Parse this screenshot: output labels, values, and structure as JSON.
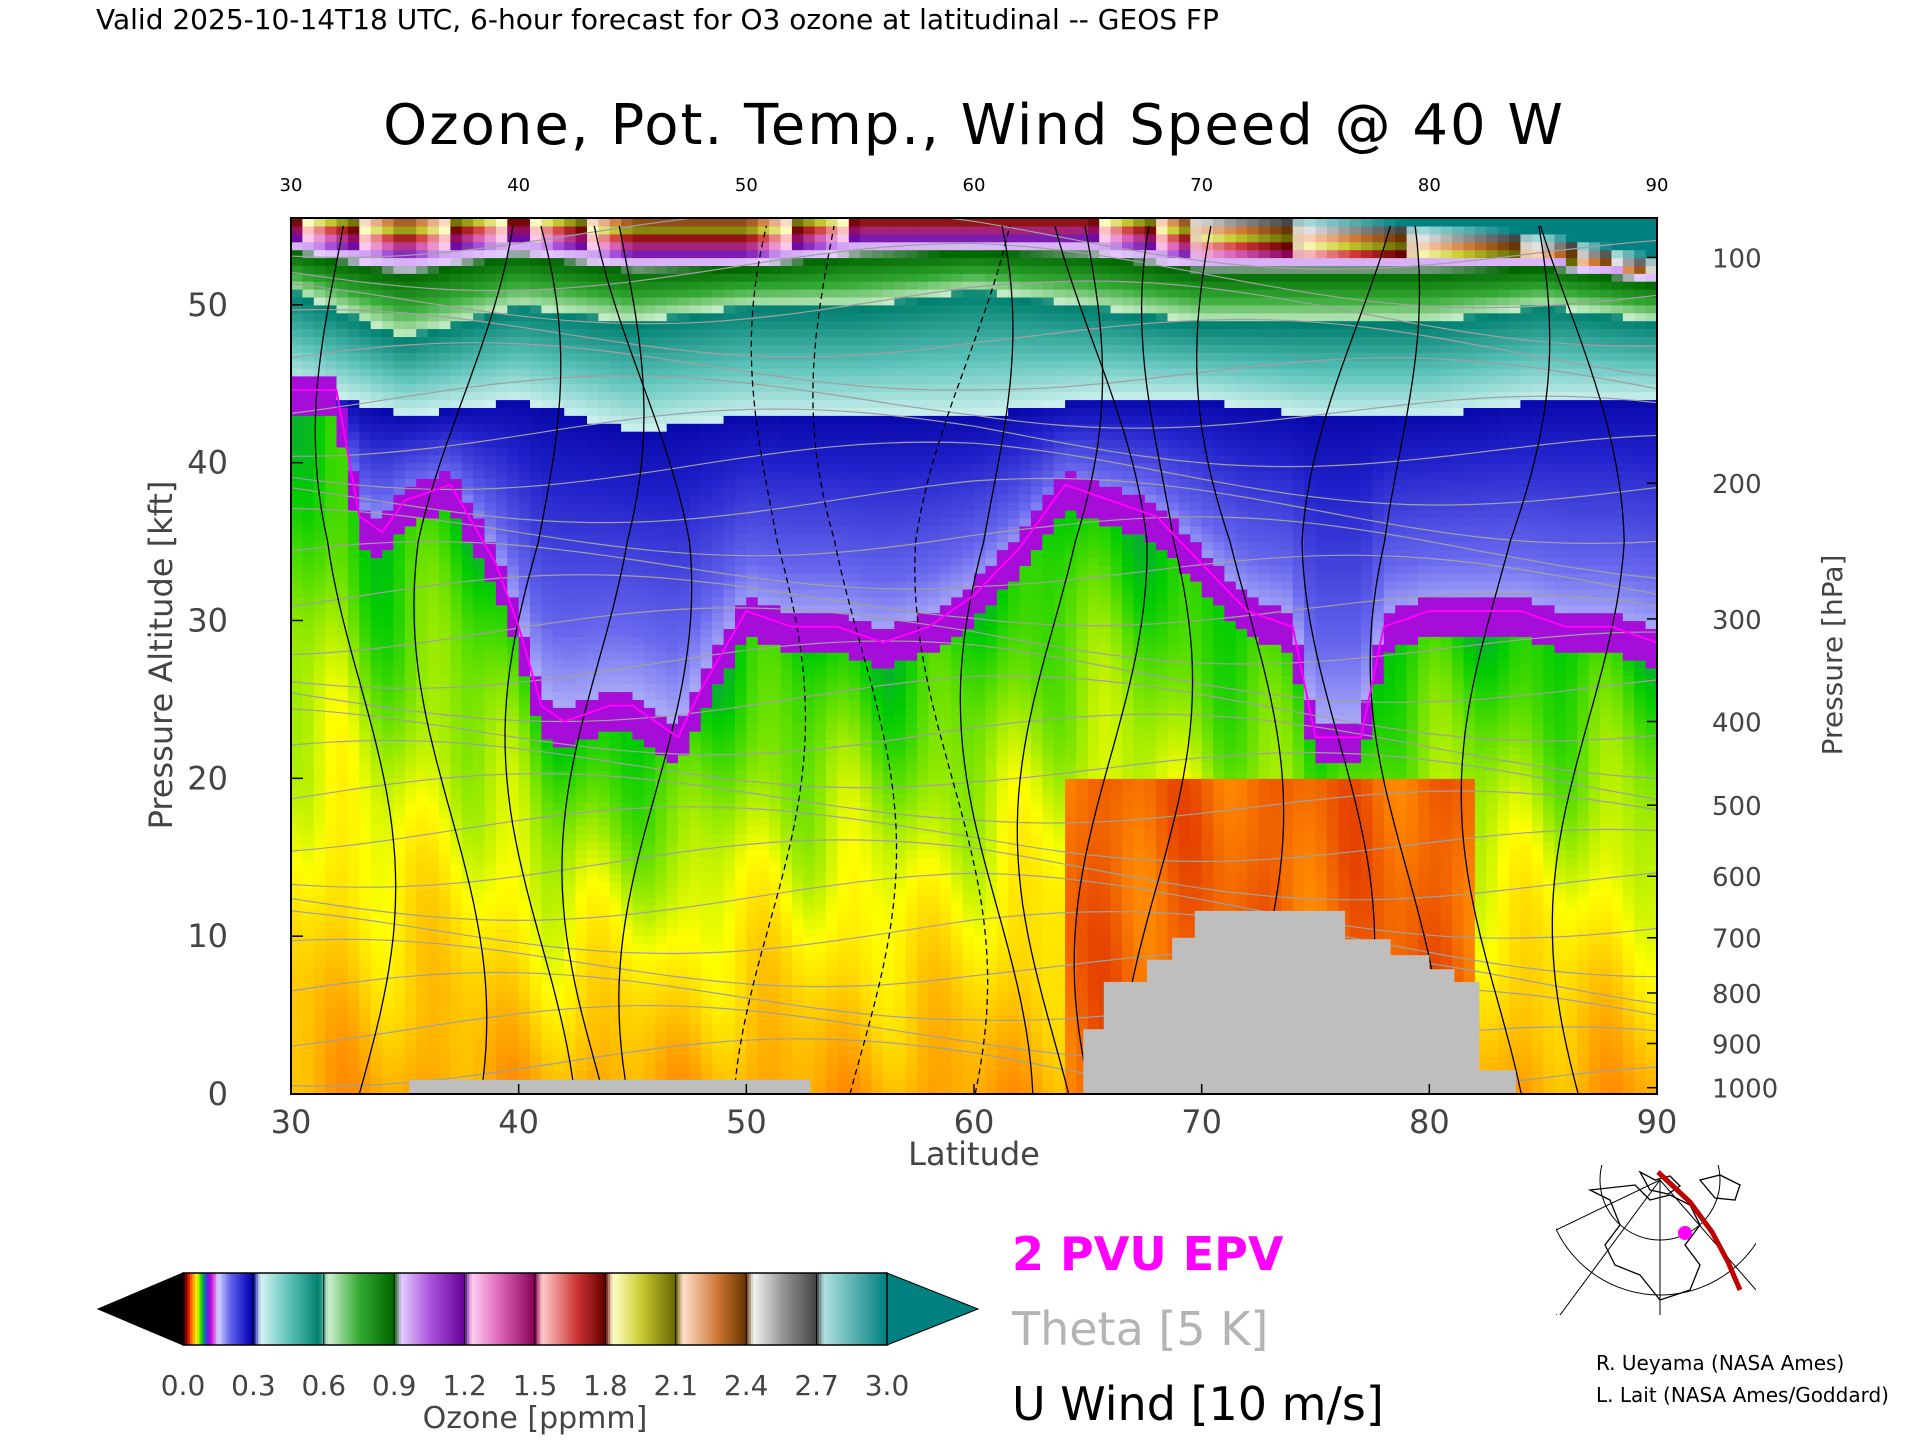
{
  "header": {
    "valid_line": "Valid 2025-10-14T18 UTC, 6-hour forecast for O3 ozone at latitudinal -- GEOS FP"
  },
  "chart_data": {
    "type": "heatmap",
    "title": "Ozone, Pot. Temp., Wind Speed @ 40 W",
    "xlabel": "Latitude",
    "ylabel": "Pressure Altitude [kft]",
    "ylabel_right": "Pressure [hPa]",
    "xlim": [
      30,
      90
    ],
    "ylim": [
      0,
      55.5
    ],
    "x_ticks": [
      "30",
      "40",
      "50",
      "60",
      "70",
      "80",
      "90"
    ],
    "y_ticks": [
      "0",
      "10",
      "20",
      "30",
      "40",
      "50"
    ],
    "pressure_levels": [
      {
        "label": "100",
        "kft": 53.0
      },
      {
        "label": "200",
        "kft": 38.7
      },
      {
        "label": "300",
        "kft": 30.1
      },
      {
        "label": "400",
        "kft": 23.6
      },
      {
        "label": "500",
        "kft": 18.3
      },
      {
        "label": "600",
        "kft": 13.8
      },
      {
        "label": "700",
        "kft": 9.9
      },
      {
        "label": "800",
        "kft": 6.4
      },
      {
        "label": "900",
        "kft": 3.2
      },
      {
        "label": "1000",
        "kft": 0.4
      }
    ],
    "tropopause_kft": [
      [
        30,
        44
      ],
      [
        32,
        44
      ],
      [
        33,
        36
      ],
      [
        34,
        35
      ],
      [
        35,
        37
      ],
      [
        37,
        38
      ],
      [
        39,
        33
      ],
      [
        40,
        29
      ],
      [
        41,
        24
      ],
      [
        42,
        23
      ],
      [
        44,
        24
      ],
      [
        45,
        24
      ],
      [
        46,
        23
      ],
      [
        47,
        22
      ],
      [
        48,
        25
      ],
      [
        50,
        30
      ],
      [
        52,
        29
      ],
      [
        54,
        29
      ],
      [
        56,
        28
      ],
      [
        58,
        29
      ],
      [
        60,
        31
      ],
      [
        62,
        34
      ],
      [
        64,
        38
      ],
      [
        66,
        37
      ],
      [
        68,
        36
      ],
      [
        70,
        33
      ],
      [
        72,
        30
      ],
      [
        74,
        29
      ],
      [
        75,
        22
      ],
      [
        77,
        22
      ],
      [
        78,
        29
      ],
      [
        80,
        30
      ],
      [
        82,
        30
      ],
      [
        84,
        30
      ],
      [
        86,
        29
      ],
      [
        88,
        29
      ],
      [
        90,
        28
      ]
    ],
    "ozone_upper_boundaries_kft": [
      [
        30,
        54,
        51,
        45
      ],
      [
        35,
        53,
        48,
        43
      ],
      [
        40,
        54,
        50,
        44
      ],
      [
        45,
        53,
        49,
        42
      ],
      [
        50,
        53,
        50,
        43
      ],
      [
        55,
        54,
        50,
        43
      ],
      [
        60,
        54,
        51,
        43
      ],
      [
        65,
        54,
        50,
        44
      ],
      [
        70,
        53,
        49,
        44
      ],
      [
        75,
        53,
        49,
        43
      ],
      [
        80,
        53,
        49,
        43
      ],
      [
        85,
        53,
        50,
        44
      ],
      [
        90,
        52,
        49,
        44
      ]
    ],
    "topography_kft": [
      [
        30,
        0
      ],
      [
        35.2,
        0
      ],
      [
        35.2,
        0.9
      ],
      [
        52.8,
        0.9
      ],
      [
        52.8,
        0
      ],
      [
        64.8,
        0
      ],
      [
        64.8,
        4.1
      ],
      [
        65.7,
        4.1
      ],
      [
        65.7,
        7.1
      ],
      [
        67.6,
        7.1
      ],
      [
        67.6,
        8.5
      ],
      [
        68.7,
        8.5
      ],
      [
        68.7,
        9.9
      ],
      [
        69.7,
        9.9
      ],
      [
        69.7,
        11.6
      ],
      [
        76.3,
        11.6
      ],
      [
        76.3,
        9.8
      ],
      [
        78.3,
        9.8
      ],
      [
        78.3,
        8.8
      ],
      [
        80.0,
        8.8
      ],
      [
        80.0,
        7.9
      ],
      [
        81.1,
        7.9
      ],
      [
        81.1,
        7.1
      ],
      [
        82.2,
        7.1
      ],
      [
        82.2,
        1.5
      ],
      [
        83.8,
        1.5
      ],
      [
        83.8,
        0
      ]
    ],
    "colorbar": {
      "label": "Ozone [ppmm]",
      "ticks": [
        "0.0",
        "0.3",
        "0.6",
        "0.9",
        "1.2",
        "1.5",
        "1.8",
        "2.1",
        "2.4",
        "2.7",
        "3.0"
      ],
      "range": [
        0,
        3.0
      ]
    },
    "legend": [
      {
        "label": "2 PVU EPV",
        "color": "#ff00ff"
      },
      {
        "label": "Theta [5 K]",
        "color": "#b4b4b4"
      },
      {
        "label": "U Wind [10 m/s]",
        "color": "#000000"
      }
    ],
    "colors": {
      "epv": "#ff00ff",
      "theta": "#a0a0a0",
      "wind": "#000000",
      "topography": "#bebebe"
    }
  },
  "credits": {
    "line1": "R. Ueyama (NASA Ames)",
    "line2": "L. Lait (NASA Ames/Goddard)"
  }
}
